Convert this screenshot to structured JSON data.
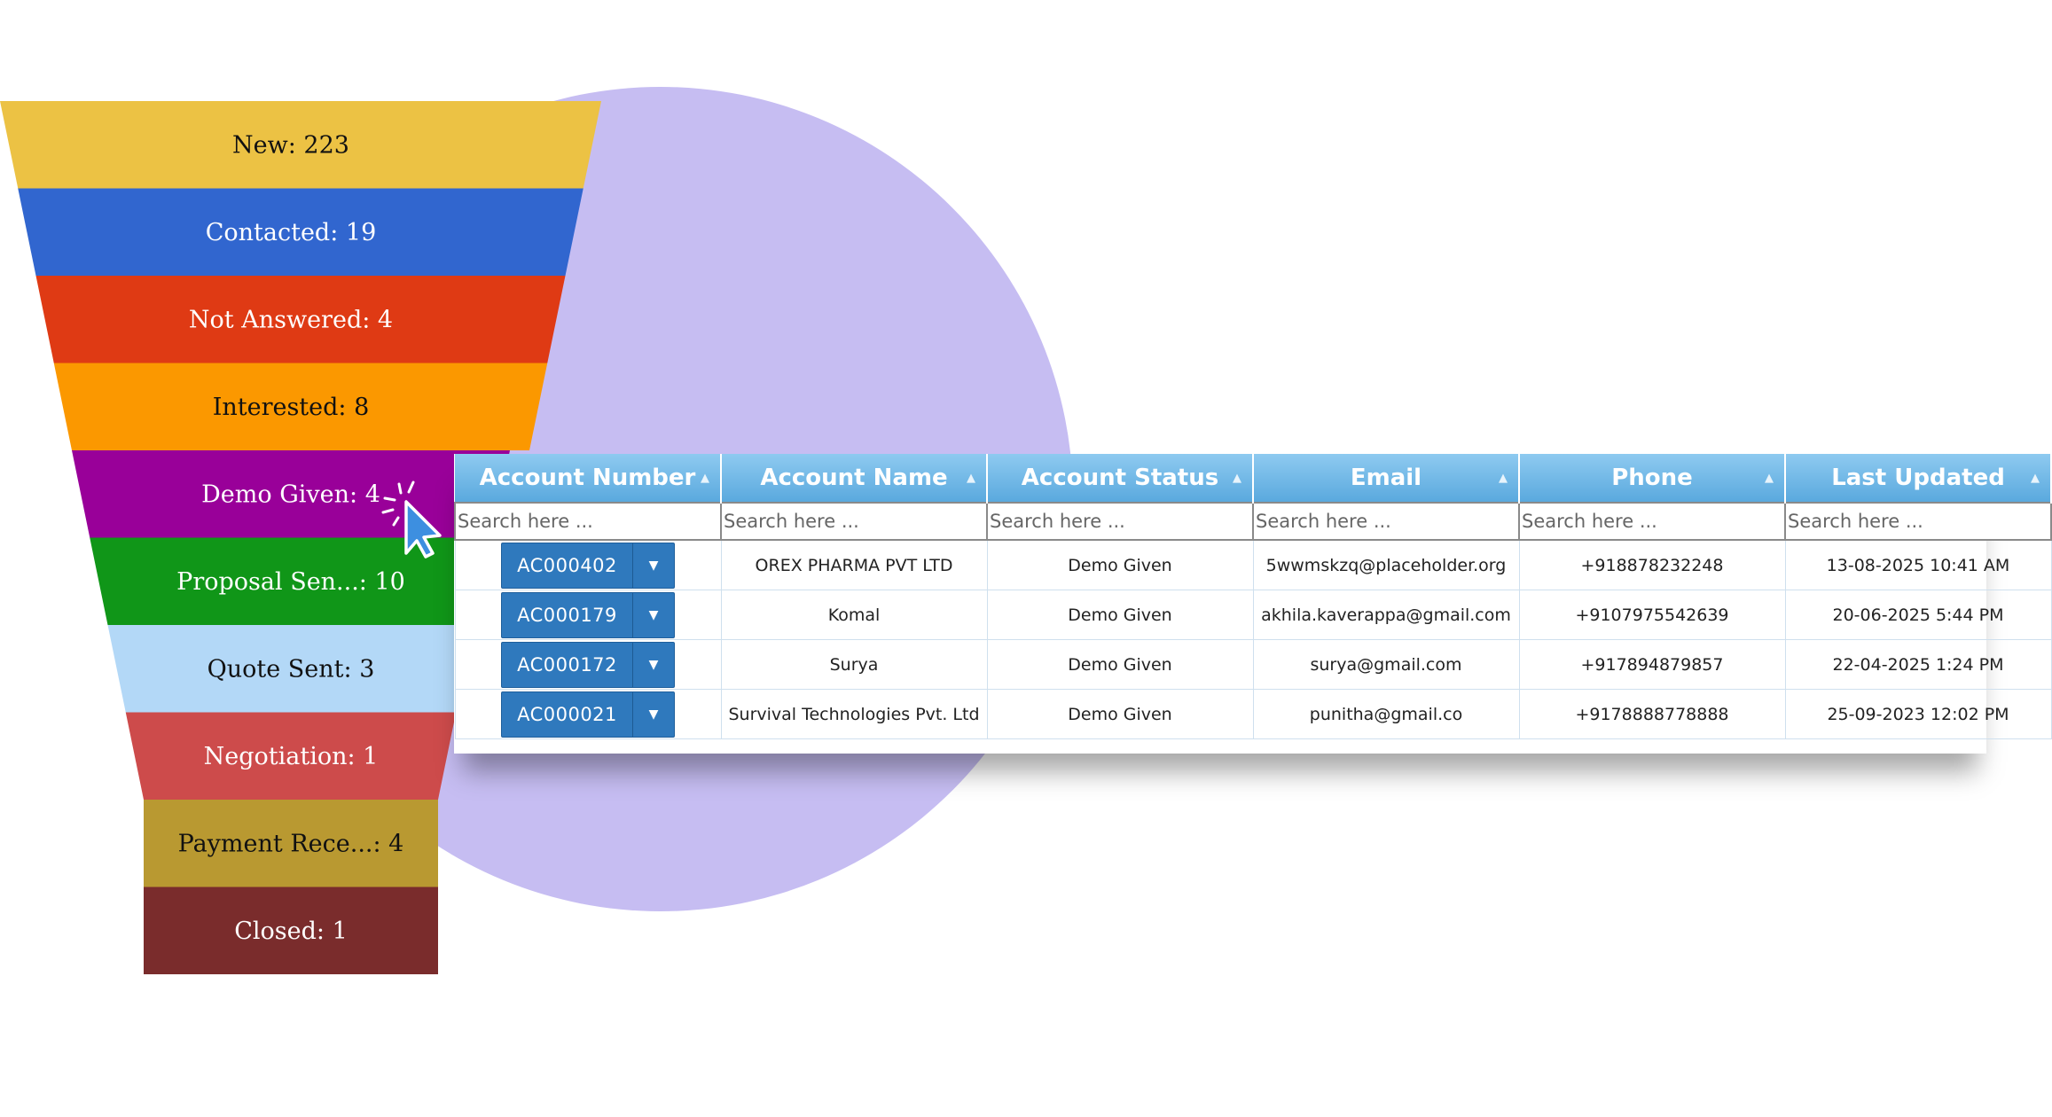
{
  "funnel": {
    "stages": [
      {
        "label": "New: 223",
        "color": "#ecc244",
        "text_color": "#111111"
      },
      {
        "label": "Contacted: 19",
        "color": "#3166cf",
        "text_color": "#ffffff"
      },
      {
        "label": "Not Answered: 4",
        "color": "#df3a14",
        "text_color": "#ffffff"
      },
      {
        "label": "Interested: 8",
        "color": "#fb9800",
        "text_color": "#111111"
      },
      {
        "label": "Demo Given: 4",
        "color": "#990099",
        "text_color": "#ffffff"
      },
      {
        "label": "Proposal Sen...: 10",
        "color": "#109618",
        "text_color": "#ffffff"
      },
      {
        "label": "Quote Sent: 3",
        "color": "#b3d8f7",
        "text_color": "#111111"
      },
      {
        "label": "Negotiation: 1",
        "color": "#cd4b4b",
        "text_color": "#ffffff"
      },
      {
        "label": "Payment Rece...: 4",
        "color": "#b99931",
        "text_color": "#111111"
      },
      {
        "label": "Closed: 1",
        "color": "#7a2c2c",
        "text_color": "#ffffff"
      }
    ]
  },
  "grid": {
    "columns": [
      {
        "label": "Account Number"
      },
      {
        "label": "Account Name"
      },
      {
        "label": "Account Status"
      },
      {
        "label": "Email"
      },
      {
        "label": "Phone"
      },
      {
        "label": "Last Updated"
      }
    ],
    "search_placeholder": "Search here ...",
    "rows": [
      {
        "account_number": "AC000402",
        "account_name": "OREX PHARMA PVT LTD",
        "status": "Demo Given",
        "email": "5wwmskzq@placeholder.org",
        "phone": "+918878232248",
        "updated": "13-08-2025 10:41 AM"
      },
      {
        "account_number": "AC000179",
        "account_name": "Komal",
        "status": "Demo Given",
        "email": "akhila.kaverappa@gmail.com",
        "phone": "+9107975542639",
        "updated": "20-06-2025 5:44 PM"
      },
      {
        "account_number": "AC000172",
        "account_name": "Surya",
        "status": "Demo Given",
        "email": "surya@gmail.com",
        "phone": "+917894879857",
        "updated": "22-04-2025 1:24 PM"
      },
      {
        "account_number": "AC000021",
        "account_name": "Survival Technologies Pvt. Ltd",
        "status": "Demo Given",
        "email": "punitha@gmail.co",
        "phone": "+9178888778888",
        "updated": "25-09-2023 12:02 PM"
      }
    ]
  },
  "icons": {
    "sort": "sort-icon",
    "dropdown": "caret-down-icon",
    "cursor": "mouse-pointer-click-icon"
  },
  "colors": {
    "backdrop_circle": "#c6bdf2",
    "header_blue": "#5aa9de",
    "account_button": "#2f79bd"
  }
}
